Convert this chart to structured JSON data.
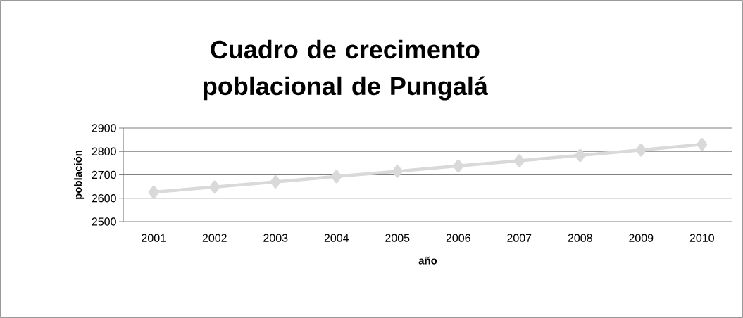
{
  "chart_data": {
    "type": "line",
    "title": "Cuadro de crecimento poblacional de Pungalá",
    "xlabel": "año",
    "ylabel": "población",
    "categories": [
      "2001",
      "2002",
      "2003",
      "2004",
      "2005",
      "2006",
      "2007",
      "2008",
      "2009",
      "2010"
    ],
    "values": [
      2626,
      2648,
      2670,
      2693,
      2715,
      2738,
      2760,
      2783,
      2806,
      2830
    ],
    "color": "#d9d9d9",
    "marker": "diamond",
    "line_style": "solid",
    "ylim": [
      2500,
      2900
    ],
    "yticks": [
      2500,
      2600,
      2700,
      2800,
      2900
    ],
    "grid": "y"
  }
}
